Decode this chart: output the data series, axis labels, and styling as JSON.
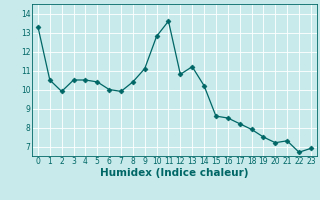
{
  "x": [
    0,
    1,
    2,
    3,
    4,
    5,
    6,
    7,
    8,
    9,
    10,
    11,
    12,
    13,
    14,
    15,
    16,
    17,
    18,
    19,
    20,
    21,
    22,
    23
  ],
  "y": [
    13.3,
    10.5,
    9.9,
    10.5,
    10.5,
    10.4,
    10.0,
    9.9,
    10.4,
    11.1,
    12.8,
    13.6,
    10.8,
    11.2,
    10.2,
    8.6,
    8.5,
    8.2,
    7.9,
    7.5,
    7.2,
    7.3,
    6.7,
    6.9
  ],
  "line_color": "#006666",
  "marker": "D",
  "marker_size": 2.5,
  "bg_color": "#c8eaea",
  "grid_color": "#ffffff",
  "xlabel": "Humidex (Indice chaleur)",
  "ylim": [
    6.5,
    14.5
  ],
  "xlim": [
    -0.5,
    23.5
  ],
  "yticks": [
    7,
    8,
    9,
    10,
    11,
    12,
    13,
    14
  ],
  "xticks": [
    0,
    1,
    2,
    3,
    4,
    5,
    6,
    7,
    8,
    9,
    10,
    11,
    12,
    13,
    14,
    15,
    16,
    17,
    18,
    19,
    20,
    21,
    22,
    23
  ],
  "tick_fontsize": 5.5,
  "xlabel_fontsize": 7.5
}
